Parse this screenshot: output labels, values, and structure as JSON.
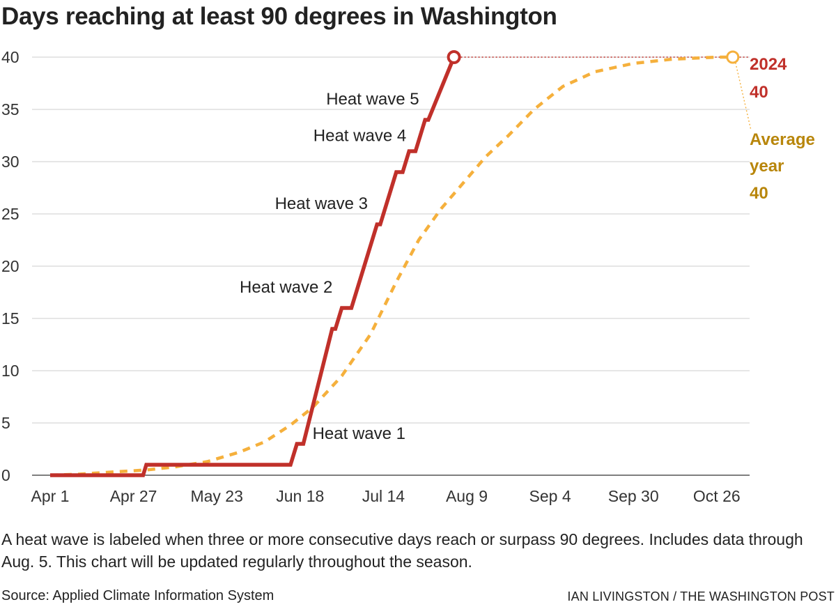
{
  "chart_data": {
    "type": "line",
    "title": "Days reaching at least 90 degrees in Washington",
    "xlabel": "",
    "ylabel": "",
    "x_ticks": [
      "Apr 1",
      "Apr 27",
      "May 23",
      "Jun 18",
      "Jul 14",
      "Aug 9",
      "Sep 4",
      "Sep 30",
      "Oct 26"
    ],
    "x_tick_dates": [
      "2024-04-01",
      "2024-04-27",
      "2024-05-23",
      "2024-06-18",
      "2024-07-14",
      "2024-08-09",
      "2024-09-04",
      "2024-09-30",
      "2024-10-26"
    ],
    "xlim": [
      "2024-03-27",
      "2024-11-06"
    ],
    "y_ticks": [
      0,
      5,
      10,
      15,
      20,
      25,
      30,
      35,
      40
    ],
    "ylim": [
      0,
      40
    ],
    "grid": true,
    "series": [
      {
        "name": "2024",
        "color": "#c0302a",
        "style": "solid-step",
        "end_label": "40",
        "points": [
          [
            "2024-04-01",
            0
          ],
          [
            "2024-04-30",
            0
          ],
          [
            "2024-05-01",
            1
          ],
          [
            "2024-06-15",
            1
          ],
          [
            "2024-06-17",
            3
          ],
          [
            "2024-06-19",
            3
          ],
          [
            "2024-06-28",
            14
          ],
          [
            "2024-06-29",
            14
          ],
          [
            "2024-07-01",
            16
          ],
          [
            "2024-07-04",
            16
          ],
          [
            "2024-07-12",
            24
          ],
          [
            "2024-07-13",
            24
          ],
          [
            "2024-07-18",
            29
          ],
          [
            "2024-07-20",
            29
          ],
          [
            "2024-07-21",
            30
          ],
          [
            "2024-07-22",
            31
          ],
          [
            "2024-07-24",
            31
          ],
          [
            "2024-07-27",
            34
          ],
          [
            "2024-07-28",
            34
          ],
          [
            "2024-08-05",
            40
          ]
        ]
      },
      {
        "name": "Average year",
        "color": "#f5b03c",
        "style": "dashed",
        "end_label": "40",
        "points": [
          [
            "2024-04-01",
            0
          ],
          [
            "2024-04-10",
            0.1
          ],
          [
            "2024-04-20",
            0.3
          ],
          [
            "2024-05-01",
            0.5
          ],
          [
            "2024-05-10",
            0.8
          ],
          [
            "2024-05-20",
            1.3
          ],
          [
            "2024-05-30",
            2.2
          ],
          [
            "2024-06-07",
            3.2
          ],
          [
            "2024-06-15",
            4.8
          ],
          [
            "2024-06-22",
            6.5
          ],
          [
            "2024-07-01",
            9.5
          ],
          [
            "2024-07-10",
            13.5
          ],
          [
            "2024-07-18",
            18.5
          ],
          [
            "2024-07-25",
            22.5
          ],
          [
            "2024-08-01",
            25.5
          ],
          [
            "2024-08-08",
            28
          ],
          [
            "2024-08-15",
            30.5
          ],
          [
            "2024-08-22",
            32.5
          ],
          [
            "2024-08-30",
            35
          ],
          [
            "2024-09-08",
            37.2
          ],
          [
            "2024-09-18",
            38.6
          ],
          [
            "2024-09-30",
            39.4
          ],
          [
            "2024-10-12",
            39.8
          ],
          [
            "2024-10-26",
            40
          ],
          [
            "2024-10-31",
            40
          ]
        ]
      }
    ],
    "annotations": [
      {
        "text": "Heat wave 1",
        "date": "2024-06-21",
        "y": 4
      },
      {
        "text": "Heat wave 2",
        "date": "2024-06-29",
        "y": 18
      },
      {
        "text": "Heat wave 3",
        "date": "2024-07-10",
        "y": 26
      },
      {
        "text": "Heat wave 4",
        "date": "2024-07-22",
        "y": 32.5
      },
      {
        "text": "Heat wave 5",
        "date": "2024-07-26",
        "y": 36
      }
    ],
    "end_labels": {
      "series_2024": {
        "name": "2024",
        "value": "40",
        "color": "#c0302a"
      },
      "average": {
        "line1": "Average",
        "line2": "year",
        "value": "40",
        "color": "#b8860b"
      }
    }
  },
  "note": "A heat wave is labeled when three or more consecutive days reach or surpass 90 degrees. Includes data through Aug. 5. This chart will be updated regularly throughout the season.",
  "source": "Source: Applied Climate Information System",
  "credit": "IAN LIVINGSTON / THE WASHINGTON POST",
  "colors": {
    "red": "#c0302a",
    "orange": "#f5b03c",
    "gold_text": "#b8860b",
    "grid": "#d6d6d6"
  }
}
